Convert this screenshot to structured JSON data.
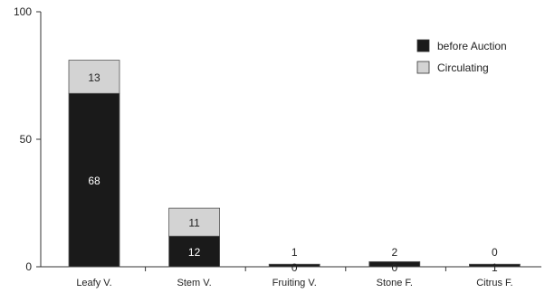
{
  "chart_data": {
    "type": "bar",
    "stacked": true,
    "title": "",
    "xlabel": "",
    "ylabel": "",
    "ylim": [
      0,
      100
    ],
    "yticks": [
      0,
      50,
      100
    ],
    "grid": false,
    "legend_position": "top-right",
    "categories": [
      "Leafy V.",
      "Stem V.",
      "Fruiting V.",
      "Stone F.",
      "Citrus F."
    ],
    "series": [
      {
        "name": "before Auction",
        "color": "#1a1a1a",
        "values": [
          68,
          12,
          0,
          0,
          1
        ],
        "labels": [
          "68",
          "12",
          "0",
          "0",
          "1"
        ]
      },
      {
        "name": "Circulating",
        "color": "#d3d3d3",
        "values": [
          13,
          11,
          1,
          2,
          0
        ],
        "labels": [
          "13",
          "11",
          "1",
          "2",
          "0"
        ]
      }
    ]
  }
}
